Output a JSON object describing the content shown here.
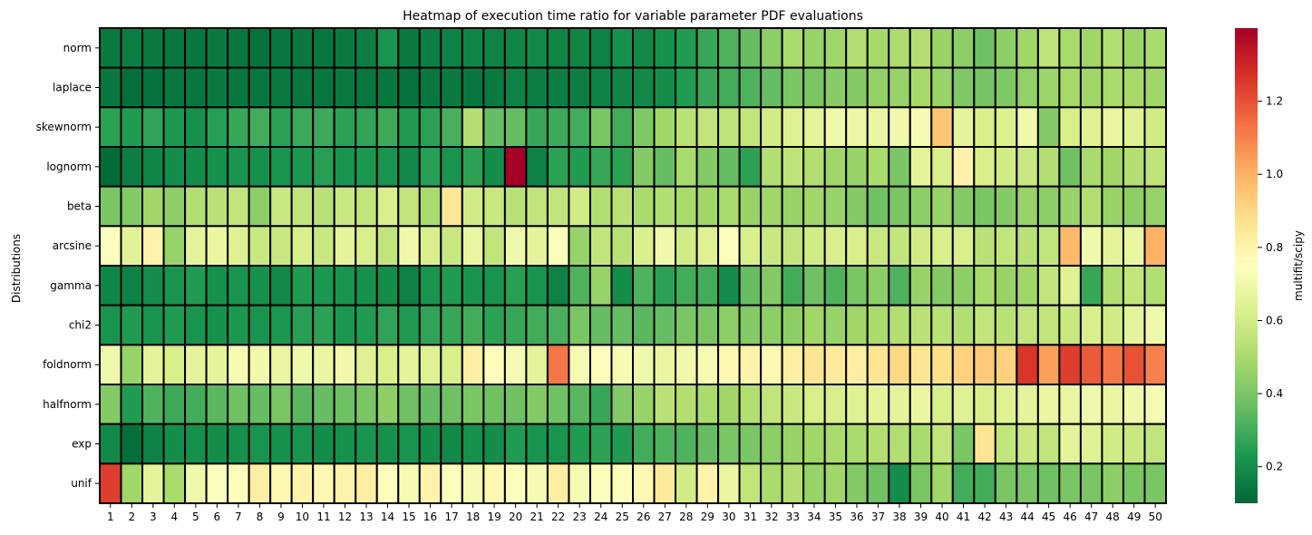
{
  "chart_data": {
    "type": "heatmap",
    "title": "Heatmap of execution time ratio for variable parameter PDF evaluations",
    "xlabel": "",
    "ylabel": "Distributions",
    "colorbar_label": "multifit/scipy",
    "colormap": "RdYlGn_r",
    "colorbar_range": [
      0.1,
      1.4
    ],
    "colorbar_ticks": [
      "0.2",
      "0.4",
      "0.6",
      "0.8",
      "1.0",
      "1.2"
    ],
    "x": [
      "1",
      "2",
      "3",
      "4",
      "5",
      "6",
      "7",
      "8",
      "9",
      "10",
      "11",
      "12",
      "13",
      "14",
      "15",
      "16",
      "17",
      "18",
      "19",
      "20",
      "21",
      "22",
      "23",
      "24",
      "25",
      "26",
      "27",
      "28",
      "29",
      "30",
      "31",
      "32",
      "33",
      "34",
      "35",
      "36",
      "37",
      "38",
      "39",
      "40",
      "41",
      "42",
      "43",
      "44",
      "45",
      "46",
      "47",
      "48",
      "49",
      "50"
    ],
    "y": [
      "norm",
      "laplace",
      "skewnorm",
      "lognorm",
      "beta",
      "arcsine",
      "gamma",
      "chi2",
      "foldnorm",
      "halfnorm",
      "exp",
      "unif"
    ],
    "values": [
      [
        0.15,
        0.16,
        0.15,
        0.14,
        0.14,
        0.15,
        0.14,
        0.13,
        0.14,
        0.14,
        0.14,
        0.15,
        0.16,
        0.22,
        0.15,
        0.16,
        0.17,
        0.18,
        0.17,
        0.18,
        0.19,
        0.18,
        0.18,
        0.17,
        0.21,
        0.19,
        0.21,
        0.24,
        0.28,
        0.32,
        0.36,
        0.44,
        0.5,
        0.46,
        0.48,
        0.52,
        0.49,
        0.51,
        0.52,
        0.46,
        0.44,
        0.38,
        0.44,
        0.48,
        0.55,
        0.5,
        0.48,
        0.52,
        0.47,
        0.5
      ],
      [
        0.14,
        0.12,
        0.13,
        0.14,
        0.14,
        0.15,
        0.14,
        0.14,
        0.15,
        0.14,
        0.14,
        0.15,
        0.14,
        0.14,
        0.13,
        0.14,
        0.15,
        0.14,
        0.15,
        0.17,
        0.16,
        0.16,
        0.16,
        0.17,
        0.18,
        0.19,
        0.2,
        0.24,
        0.28,
        0.3,
        0.32,
        0.36,
        0.4,
        0.4,
        0.43,
        0.42,
        0.45,
        0.46,
        0.49,
        0.46,
        0.41,
        0.39,
        0.41,
        0.45,
        0.47,
        0.49,
        0.48,
        0.5,
        0.49,
        0.48
      ],
      [
        0.26,
        0.24,
        0.27,
        0.23,
        0.21,
        0.25,
        0.28,
        0.3,
        0.26,
        0.29,
        0.29,
        0.26,
        0.27,
        0.29,
        0.24,
        0.26,
        0.31,
        0.52,
        0.36,
        0.36,
        0.28,
        0.29,
        0.3,
        0.4,
        0.3,
        0.41,
        0.48,
        0.54,
        0.56,
        0.55,
        0.56,
        0.6,
        0.64,
        0.66,
        0.7,
        0.69,
        0.68,
        0.7,
        0.72,
        0.95,
        0.66,
        0.62,
        0.63,
        0.7,
        0.42,
        0.62,
        0.64,
        0.68,
        0.64,
        0.6
      ],
      [
        0.11,
        0.16,
        0.18,
        0.2,
        0.2,
        0.21,
        0.22,
        0.21,
        0.22,
        0.23,
        0.25,
        0.22,
        0.23,
        0.22,
        0.19,
        0.25,
        0.22,
        0.26,
        0.2,
        1.4,
        0.17,
        0.26,
        0.24,
        0.28,
        0.26,
        0.42,
        0.36,
        0.5,
        0.42,
        0.36,
        0.26,
        0.52,
        0.55,
        0.52,
        0.48,
        0.46,
        0.5,
        0.4,
        0.66,
        0.62,
        0.8,
        0.62,
        0.6,
        0.58,
        0.52,
        0.38,
        0.5,
        0.48,
        0.52,
        0.55
      ],
      [
        0.4,
        0.42,
        0.48,
        0.44,
        0.52,
        0.54,
        0.56,
        0.44,
        0.58,
        0.56,
        0.54,
        0.58,
        0.56,
        0.62,
        0.56,
        0.5,
        0.85,
        0.6,
        0.58,
        0.54,
        0.56,
        0.56,
        0.6,
        0.52,
        0.54,
        0.5,
        0.52,
        0.5,
        0.48,
        0.5,
        0.46,
        0.48,
        0.46,
        0.48,
        0.46,
        0.42,
        0.38,
        0.4,
        0.44,
        0.46,
        0.42,
        0.4,
        0.42,
        0.46,
        0.44,
        0.46,
        0.52,
        0.46,
        0.44,
        0.46
      ],
      [
        0.74,
        0.65,
        0.8,
        0.46,
        0.66,
        0.68,
        0.64,
        0.58,
        0.58,
        0.62,
        0.58,
        0.66,
        0.62,
        0.56,
        0.7,
        0.62,
        0.58,
        0.68,
        0.56,
        0.7,
        0.66,
        0.74,
        0.46,
        0.56,
        0.54,
        0.62,
        0.7,
        0.6,
        0.64,
        0.74,
        0.62,
        0.58,
        0.56,
        0.6,
        0.62,
        0.62,
        0.58,
        0.56,
        0.6,
        0.62,
        0.62,
        0.54,
        0.56,
        0.54,
        0.56,
        0.98,
        0.7,
        0.66,
        0.68,
        1.0
      ],
      [
        0.18,
        0.17,
        0.2,
        0.22,
        0.24,
        0.21,
        0.22,
        0.21,
        0.19,
        0.24,
        0.23,
        0.22,
        0.21,
        0.2,
        0.17,
        0.22,
        0.24,
        0.22,
        0.22,
        0.25,
        0.22,
        0.17,
        0.32,
        0.46,
        0.2,
        0.32,
        0.26,
        0.3,
        0.3,
        0.2,
        0.36,
        0.42,
        0.3,
        0.38,
        0.32,
        0.4,
        0.44,
        0.32,
        0.46,
        0.42,
        0.44,
        0.5,
        0.46,
        0.48,
        0.56,
        0.64,
        0.28,
        0.52,
        0.56,
        0.52
      ],
      [
        0.22,
        0.24,
        0.22,
        0.24,
        0.22,
        0.21,
        0.23,
        0.22,
        0.23,
        0.25,
        0.26,
        0.23,
        0.24,
        0.27,
        0.24,
        0.27,
        0.28,
        0.3,
        0.26,
        0.28,
        0.3,
        0.31,
        0.4,
        0.36,
        0.36,
        0.34,
        0.36,
        0.4,
        0.4,
        0.44,
        0.42,
        0.44,
        0.44,
        0.48,
        0.46,
        0.48,
        0.5,
        0.52,
        0.54,
        0.54,
        0.52,
        0.56,
        0.54,
        0.56,
        0.56,
        0.58,
        0.62,
        0.6,
        0.66,
        0.7
      ],
      [
        0.7,
        0.46,
        0.66,
        0.62,
        0.66,
        0.66,
        0.72,
        0.7,
        0.68,
        0.7,
        0.68,
        0.7,
        0.64,
        0.62,
        0.66,
        0.64,
        0.62,
        0.82,
        0.76,
        0.72,
        0.66,
        1.12,
        0.72,
        0.76,
        0.72,
        0.7,
        0.68,
        0.7,
        0.72,
        0.78,
        0.8,
        0.78,
        0.82,
        0.86,
        0.84,
        0.82,
        0.86,
        0.9,
        0.86,
        0.88,
        0.92,
        0.94,
        0.92,
        1.26,
        1.04,
        1.24,
        1.18,
        1.12,
        1.2,
        1.1
      ],
      [
        0.42,
        0.24,
        0.32,
        0.29,
        0.3,
        0.34,
        0.38,
        0.36,
        0.4,
        0.34,
        0.36,
        0.38,
        0.4,
        0.44,
        0.38,
        0.36,
        0.38,
        0.4,
        0.38,
        0.38,
        0.42,
        0.38,
        0.34,
        0.28,
        0.42,
        0.46,
        0.54,
        0.52,
        0.5,
        0.48,
        0.52,
        0.56,
        0.58,
        0.62,
        0.62,
        0.64,
        0.66,
        0.66,
        0.68,
        0.62,
        0.64,
        0.62,
        0.64,
        0.66,
        0.68,
        0.68,
        0.7,
        0.68,
        0.7,
        0.72
      ],
      [
        0.19,
        0.12,
        0.17,
        0.2,
        0.21,
        0.2,
        0.21,
        0.22,
        0.21,
        0.22,
        0.2,
        0.21,
        0.22,
        0.21,
        0.22,
        0.2,
        0.19,
        0.21,
        0.2,
        0.24,
        0.22,
        0.22,
        0.24,
        0.26,
        0.24,
        0.3,
        0.32,
        0.32,
        0.36,
        0.4,
        0.4,
        0.44,
        0.46,
        0.48,
        0.5,
        0.5,
        0.52,
        0.52,
        0.5,
        0.56,
        0.4,
        0.86,
        0.56,
        0.58,
        0.56,
        0.66,
        0.64,
        0.6,
        0.58,
        0.56
      ],
      [
        1.24,
        0.48,
        0.66,
        0.5,
        0.7,
        0.74,
        0.76,
        0.82,
        0.78,
        0.8,
        0.78,
        0.8,
        0.82,
        0.76,
        0.72,
        0.8,
        0.74,
        0.72,
        0.78,
        0.74,
        0.72,
        0.82,
        0.72,
        0.74,
        0.74,
        0.78,
        0.84,
        0.6,
        0.8,
        0.68,
        0.56,
        0.5,
        0.52,
        0.46,
        0.48,
        0.42,
        0.38,
        0.2,
        0.4,
        0.48,
        0.3,
        0.3,
        0.4,
        0.4,
        0.38,
        0.4,
        0.4,
        0.44,
        0.4,
        0.4
      ]
    ]
  }
}
